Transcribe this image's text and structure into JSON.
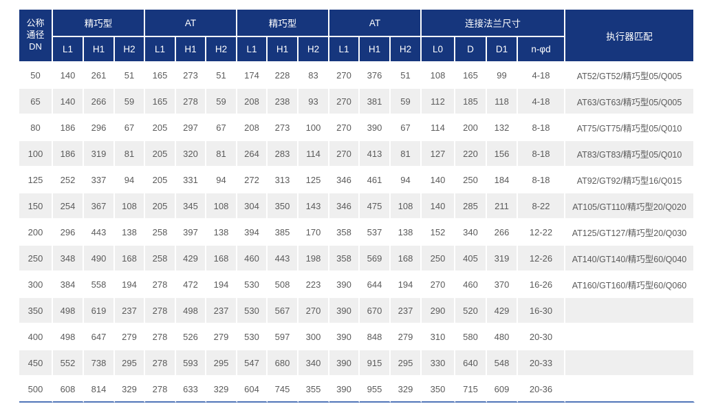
{
  "table": {
    "dn_header": "公称\n通径\nDN",
    "actuator_header": "执行器匹配",
    "groups": [
      {
        "label": "精巧型",
        "cols": [
          "L1",
          "H1",
          "H2"
        ]
      },
      {
        "label": "AT",
        "cols": [
          "L1",
          "H1",
          "H2"
        ]
      },
      {
        "label": "精巧型",
        "cols": [
          "L1",
          "H1",
          "H2"
        ]
      },
      {
        "label": "AT",
        "cols": [
          "L1",
          "H1",
          "H2"
        ]
      },
      {
        "label": "连接法兰尺寸",
        "cols": [
          "L0",
          "D",
          "D1",
          "n-φd"
        ]
      }
    ],
    "rows": [
      {
        "dn": "50",
        "values": [
          "140",
          "261",
          "51",
          "165",
          "273",
          "51",
          "174",
          "228",
          "83",
          "270",
          "376",
          "51",
          "108",
          "165",
          "99",
          "4-18"
        ],
        "actuator": "AT52/GT52/精巧型05/Q005"
      },
      {
        "dn": "65",
        "values": [
          "140",
          "266",
          "59",
          "165",
          "278",
          "59",
          "208",
          "238",
          "93",
          "270",
          "381",
          "59",
          "112",
          "185",
          "118",
          "4-18"
        ],
        "actuator": "AT63/GT63/精巧型05/Q005"
      },
      {
        "dn": "80",
        "values": [
          "186",
          "296",
          "67",
          "205",
          "297",
          "67",
          "208",
          "273",
          "100",
          "270",
          "390",
          "67",
          "114",
          "200",
          "132",
          "8-18"
        ],
        "actuator": "AT75/GT75/精巧型05/Q010"
      },
      {
        "dn": "100",
        "values": [
          "186",
          "319",
          "81",
          "205",
          "320",
          "81",
          "264",
          "283",
          "114",
          "270",
          "413",
          "81",
          "127",
          "220",
          "156",
          "8-18"
        ],
        "actuator": "AT83/GT83/精巧型05/Q010"
      },
      {
        "dn": "125",
        "values": [
          "252",
          "337",
          "94",
          "205",
          "331",
          "94",
          "272",
          "313",
          "125",
          "346",
          "461",
          "94",
          "140",
          "250",
          "184",
          "8-18"
        ],
        "actuator": "AT92/GT92/精巧型16/Q015"
      },
      {
        "dn": "150",
        "values": [
          "254",
          "367",
          "108",
          "205",
          "345",
          "108",
          "304",
          "350",
          "143",
          "346",
          "475",
          "108",
          "140",
          "285",
          "211",
          "8-22"
        ],
        "actuator": "AT105/GT110/精巧型20/Q020"
      },
      {
        "dn": "200",
        "values": [
          "296",
          "443",
          "138",
          "258",
          "397",
          "138",
          "394",
          "385",
          "170",
          "358",
          "537",
          "138",
          "152",
          "340",
          "266",
          "12-22"
        ],
        "actuator": "AT125/GT127/精巧型20/Q030"
      },
      {
        "dn": "250",
        "values": [
          "348",
          "490",
          "168",
          "258",
          "429",
          "168",
          "460",
          "443",
          "198",
          "358",
          "569",
          "168",
          "250",
          "405",
          "319",
          "12-26"
        ],
        "actuator": "AT140/GT140/精巧型60/Q040"
      },
      {
        "dn": "300",
        "values": [
          "384",
          "558",
          "194",
          "278",
          "472",
          "194",
          "530",
          "508",
          "223",
          "390",
          "644",
          "194",
          "270",
          "460",
          "370",
          "16-26"
        ],
        "actuator": "AT160/GT160/精巧型60/Q060"
      },
      {
        "dn": "350",
        "values": [
          "498",
          "619",
          "237",
          "278",
          "498",
          "237",
          "530",
          "567",
          "270",
          "390",
          "670",
          "237",
          "290",
          "520",
          "429",
          "16-30"
        ],
        "actuator": ""
      },
      {
        "dn": "400",
        "values": [
          "498",
          "647",
          "279",
          "278",
          "526",
          "279",
          "530",
          "597",
          "300",
          "390",
          "848",
          "279",
          "310",
          "580",
          "480",
          "20-30"
        ],
        "actuator": ""
      },
      {
        "dn": "450",
        "values": [
          "552",
          "738",
          "295",
          "278",
          "593",
          "295",
          "547",
          "680",
          "340",
          "390",
          "915",
          "295",
          "330",
          "640",
          "548",
          "20-33"
        ],
        "actuator": ""
      },
      {
        "dn": "500",
        "values": [
          "608",
          "814",
          "329",
          "278",
          "633",
          "329",
          "604",
          "745",
          "355",
          "390",
          "955",
          "329",
          "350",
          "715",
          "609",
          "20-36"
        ],
        "actuator": ""
      }
    ]
  },
  "colors": {
    "header_bg": "#16367d",
    "header_text": "#ffffff",
    "row_alt": "#efefef",
    "body_text": "#5a5a5a",
    "bottom_line": "#4f74b8"
  }
}
